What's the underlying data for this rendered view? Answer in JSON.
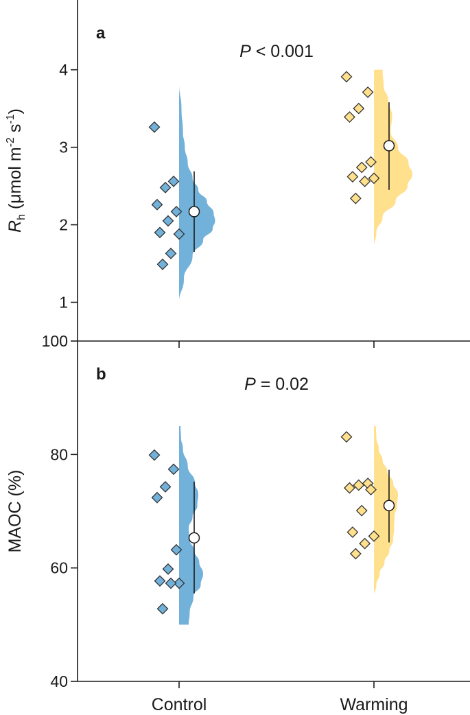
{
  "chart_data": [
    {
      "type": "raincloud",
      "panel_label": "a",
      "annotation": {
        "italic": "P",
        "text": " < 0.001"
      },
      "ylabel": {
        "main": "R",
        "sub": "h",
        "rest_a": " (μmol m",
        "sup1": "-2",
        "rest_b": " s",
        "sup2": "-1",
        "rest_c": ")"
      },
      "ylim": [
        0.5,
        4.9
      ],
      "yticks": [
        1,
        2,
        3,
        4
      ],
      "categories": [
        "Control",
        "Warming"
      ],
      "series": [
        {
          "name": "Control",
          "color": "#72b1d9",
          "points": [
            3.26,
            2.56,
            2.48,
            2.26,
            2.17,
            2.05,
            1.9,
            1.88,
            1.63,
            1.49
          ],
          "mean": 2.17,
          "range": [
            1.65,
            2.69
          ],
          "violin": [
            [
              1.0,
              0.0
            ],
            [
              1.3,
              0.1
            ],
            [
              1.6,
              0.28
            ],
            [
              1.8,
              0.5
            ],
            [
              1.95,
              0.7
            ],
            [
              2.05,
              0.75
            ],
            [
              2.15,
              0.72
            ],
            [
              2.3,
              0.58
            ],
            [
              2.45,
              0.4
            ],
            [
              2.6,
              0.28
            ],
            [
              2.8,
              0.18
            ],
            [
              3.0,
              0.12
            ],
            [
              3.2,
              0.08
            ],
            [
              3.5,
              0.05
            ],
            [
              3.82,
              0.0
            ]
          ]
        },
        {
          "name": "Warming",
          "color": "#ffe08c",
          "points": [
            3.91,
            3.71,
            3.5,
            3.39,
            2.81,
            2.74,
            2.62,
            2.6,
            2.56,
            2.34
          ],
          "mean": 3.02,
          "range": [
            2.45,
            3.58
          ],
          "violin": [
            [
              1.7,
              0.0
            ],
            [
              1.9,
              0.05
            ],
            [
              2.1,
              0.18
            ],
            [
              2.3,
              0.45
            ],
            [
              2.5,
              0.7
            ],
            [
              2.65,
              0.8
            ],
            [
              2.8,
              0.72
            ],
            [
              3.0,
              0.5
            ],
            [
              3.2,
              0.35
            ],
            [
              3.4,
              0.38
            ],
            [
              3.6,
              0.3
            ],
            [
              3.8,
              0.2
            ],
            [
              4.0,
              0.18
            ]
          ]
        }
      ]
    },
    {
      "type": "raincloud",
      "panel_label": "b",
      "annotation": {
        "italic": "P",
        "text": " = 0.02"
      },
      "ylabel": "MAOC (%)",
      "ylim": [
        40,
        100
      ],
      "yticks": [
        40,
        60,
        80,
        100
      ],
      "categories": [
        "Control",
        "Warming"
      ],
      "series": [
        {
          "name": "Control",
          "color": "#72b1d9",
          "points": [
            79.9,
            77.4,
            74.3,
            72.4,
            63.2,
            59.8,
            57.7,
            57.3,
            57.3,
            52.8
          ],
          "mean": 65.3,
          "range": [
            55.5,
            75.2
          ],
          "violin": [
            [
              50.0,
              0.2
            ],
            [
              52.0,
              0.22
            ],
            [
              55.0,
              0.3
            ],
            [
              57.0,
              0.45
            ],
            [
              59.0,
              0.5
            ],
            [
              61.0,
              0.42
            ],
            [
              63.0,
              0.32
            ],
            [
              65.0,
              0.22
            ],
            [
              67.0,
              0.2
            ],
            [
              69.0,
              0.28
            ],
            [
              71.0,
              0.38
            ],
            [
              73.0,
              0.4
            ],
            [
              75.0,
              0.33
            ],
            [
              78.0,
              0.18
            ],
            [
              81.0,
              0.08
            ],
            [
              83.0,
              0.04
            ],
            [
              85.0,
              0.03
            ]
          ]
        },
        {
          "name": "Warming",
          "color": "#ffe08c",
          "points": [
            83.1,
            74.9,
            74.6,
            74.1,
            73.8,
            70.1,
            66.3,
            65.6,
            64.3,
            62.5
          ],
          "mean": 71.0,
          "range": [
            64.5,
            77.3
          ],
          "violin": [
            [
              55.0,
              0.0
            ],
            [
              57.0,
              0.05
            ],
            [
              59.0,
              0.12
            ],
            [
              61.0,
              0.22
            ],
            [
              63.0,
              0.32
            ],
            [
              65.0,
              0.4
            ],
            [
              67.0,
              0.42
            ],
            [
              69.0,
              0.43
            ],
            [
              71.0,
              0.48
            ],
            [
              73.0,
              0.5
            ],
            [
              75.0,
              0.4
            ],
            [
              77.0,
              0.28
            ],
            [
              79.0,
              0.18
            ],
            [
              81.0,
              0.1
            ],
            [
              83.0,
              0.05
            ],
            [
              85.0,
              0.04
            ]
          ]
        }
      ]
    }
  ]
}
